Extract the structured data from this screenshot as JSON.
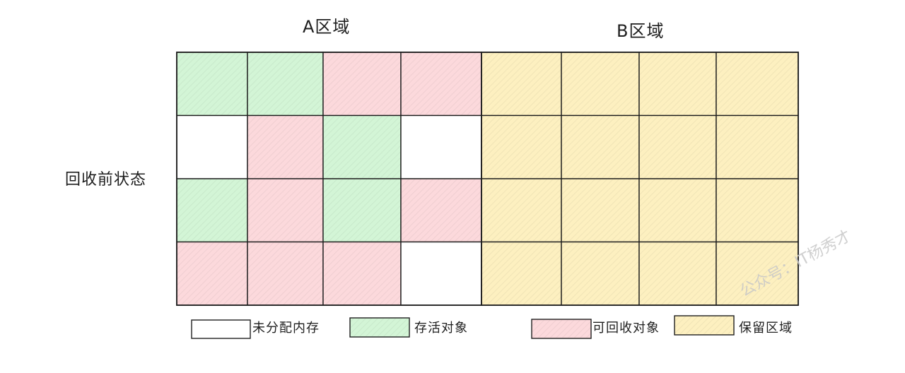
{
  "titles": {
    "region_a": "A区域",
    "region_b": "B区域"
  },
  "row_label": "回收前状态",
  "colors": {
    "unallocated": "#ffffff",
    "live": "#d3f5d6",
    "reclaimable": "#fcd9dc",
    "reserved": "#fdf0c0",
    "stroke": "#1e1e1e"
  },
  "grid_a": [
    [
      "live",
      "live",
      "reclaimable",
      "reclaimable"
    ],
    [
      "unallocated",
      "reclaimable",
      "live",
      "unallocated"
    ],
    [
      "live",
      "reclaimable",
      "live",
      "reclaimable"
    ],
    [
      "reclaimable",
      "reclaimable",
      "reclaimable",
      "unallocated"
    ]
  ],
  "grid_b": [
    [
      "reserved",
      "reserved",
      "reserved",
      "reserved"
    ],
    [
      "reserved",
      "reserved",
      "reserved",
      "reserved"
    ],
    [
      "reserved",
      "reserved",
      "reserved",
      "reserved"
    ],
    [
      "reserved",
      "reserved",
      "reserved",
      "reserved"
    ]
  ],
  "legend": [
    {
      "kind": "unallocated",
      "label": "未分配内存"
    },
    {
      "kind": "live",
      "label": "存活对象"
    },
    {
      "kind": "reclaimable",
      "label": "可回收对象"
    },
    {
      "kind": "reserved",
      "label": "保留区域"
    }
  ],
  "watermark": "公众号：IT杨秀才"
}
